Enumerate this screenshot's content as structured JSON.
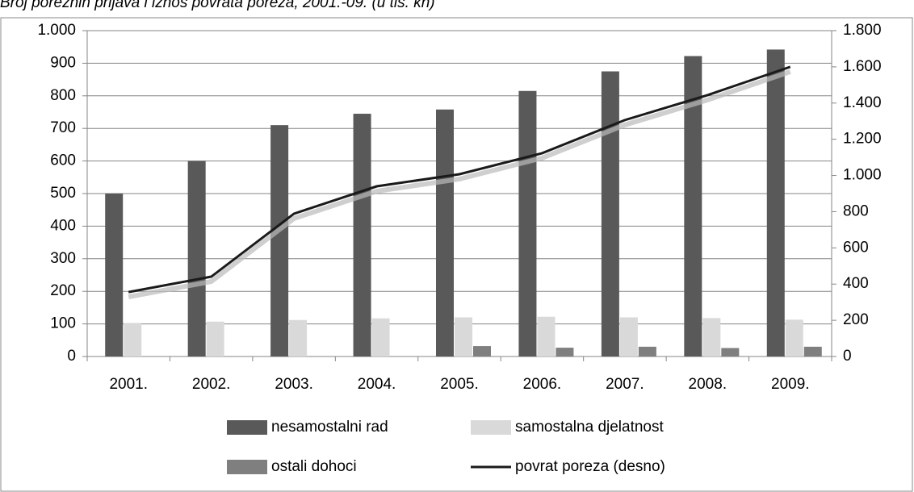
{
  "chart_data": {
    "type": "bar",
    "title": "Broj poreznih prijava i iznos povrata poreza, 2001.-09. (u tis. kn)",
    "categories": [
      "2001.",
      "2002.",
      "2003.",
      "2004.",
      "2005.",
      "2006.",
      "2007.",
      "2008.",
      "2009."
    ],
    "series": [
      {
        "name": "nesamostalni rad",
        "color": "#595959",
        "values": [
          500,
          600,
          710,
          745,
          758,
          815,
          875,
          922,
          942
        ]
      },
      {
        "name": "samostalna djelatnost",
        "color": "#d9d9d9",
        "values": [
          103,
          107,
          112,
          117,
          120,
          122,
          120,
          118,
          113
        ]
      },
      {
        "name": "ostali dohoci",
        "color": "#7f7f7f",
        "values": [
          null,
          null,
          null,
          null,
          32,
          27,
          30,
          26,
          30
        ]
      },
      {
        "name": "povrat poreza (desno)",
        "color": "#1a1a1a",
        "type": "line",
        "axis": "y2",
        "values": [
          356,
          441,
          789,
          940,
          1007,
          1123,
          1306,
          1444,
          1600
        ]
      }
    ],
    "ylim": [
      0,
      1000
    ],
    "yticks": [
      0,
      100,
      200,
      300,
      400,
      500,
      600,
      700,
      800,
      900,
      {
        "value": 1000,
        "label": "1.000"
      }
    ],
    "y2lim": [
      0,
      1800
    ],
    "y2ticks": [
      0,
      200,
      400,
      600,
      800,
      {
        "value": 1000,
        "label": "1.000"
      },
      {
        "value": 1200,
        "label": "1.200"
      },
      {
        "value": 1400,
        "label": "1.400"
      },
      {
        "value": 1600,
        "label": "1.600"
      },
      {
        "value": 1800,
        "label": "1.800"
      }
    ],
    "grid": true
  }
}
